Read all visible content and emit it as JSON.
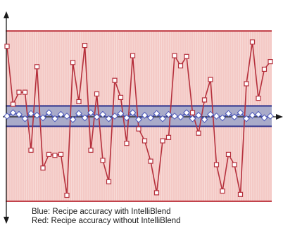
{
  "captions": {
    "blue": "Blue: Recipe accuracy with IntelliBlend",
    "red": "Red: Recipe accuracy without IntelliBlend"
  },
  "colors": {
    "red_band_fill": "#f4c9c5",
    "red_band_border": "#c2434c",
    "red_series": "#b5303c",
    "blue_band_fill": "#9ba4c9",
    "blue_band_border": "#2a2f8c",
    "blue_series": "#4a56b8",
    "axis": "#1a1a1a"
  },
  "chart_data": {
    "type": "line",
    "title": "",
    "xlabel": "",
    "ylabel": "",
    "ylim": [
      -100,
      100
    ],
    "grid": "vertical",
    "red_band": [
      -100,
      100
    ],
    "blue_band": [
      -12,
      12
    ],
    "series": [
      {
        "name": "",
        "color": "#b5303c",
        "marker": "square",
        "values": [
          82,
          14,
          28,
          28,
          -40,
          58,
          -61,
          -45,
          -46,
          -45,
          -93,
          63,
          17,
          83,
          -40,
          26,
          -52,
          -77,
          42,
          22,
          -32,
          71,
          -15,
          -29,
          -53,
          -90,
          -29,
          -25,
          71,
          59,
          70,
          4,
          -20,
          19,
          43,
          -57,
          -88,
          -45,
          -57,
          -92,
          38,
          87,
          21,
          55,
          64
        ]
      },
      {
        "name": "",
        "color": "#4a56b8",
        "marker": "diamond",
        "values": [
          0,
          4,
          2,
          -3,
          3,
          1,
          -2,
          4,
          -3,
          2,
          0,
          -4,
          3,
          -2,
          4,
          -1,
          2,
          -3,
          0,
          3,
          -2,
          4,
          -4,
          1,
          -2,
          3,
          -3,
          2,
          0,
          -1,
          4,
          -3,
          1,
          -4,
          2,
          0,
          -2,
          3,
          -1,
          4,
          -3,
          1,
          2,
          -2,
          0
        ]
      }
    ]
  }
}
